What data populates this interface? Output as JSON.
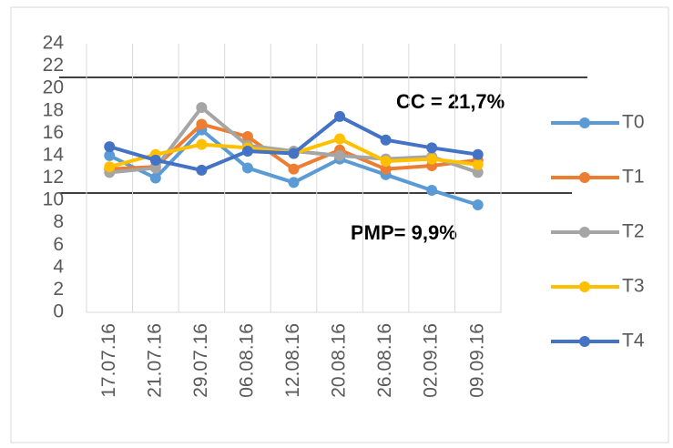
{
  "chart_data": {
    "type": "line",
    "categories": [
      "17.07.16",
      "21.07.16",
      "29.07.16",
      "06.08.16",
      "12.08.16",
      "20.08.16",
      "26.08.16",
      "02.09.16",
      "09.09.16"
    ],
    "series": [
      {
        "name": "T0",
        "color": "#5b9bd5",
        "values": [
          14,
          12,
          16.3,
          12.9,
          11.6,
          13.7,
          12.3,
          10.9,
          9.6
        ]
      },
      {
        "name": "T1",
        "color": "#ed7d31",
        "values": [
          12.8,
          13,
          16.8,
          15.7,
          12.8,
          14.5,
          12.8,
          13.1,
          13.6
        ]
      },
      {
        "name": "T2",
        "color": "#a5a5a5",
        "values": [
          12.5,
          12.9,
          18.3,
          14.9,
          14.4,
          14,
          13.7,
          13.9,
          12.5
        ]
      },
      {
        "name": "T3",
        "color": "#ffc000",
        "values": [
          13,
          14.1,
          15,
          14.7,
          14.2,
          15.5,
          13.5,
          13.7,
          13.2
        ]
      },
      {
        "name": "T4",
        "color": "#4472c4",
        "values": [
          14.8,
          13.6,
          12.7,
          14.4,
          14.2,
          17.5,
          15.4,
          14.7,
          14.1
        ]
      }
    ],
    "ylim": [
      0,
      24
    ],
    "yticks": [
      0,
      2,
      4,
      6,
      8,
      10,
      12,
      14,
      16,
      18,
      20,
      22,
      24
    ],
    "grid": true,
    "annotations": [
      "CC = 21,7%",
      "PMP= 9,9%"
    ]
  }
}
